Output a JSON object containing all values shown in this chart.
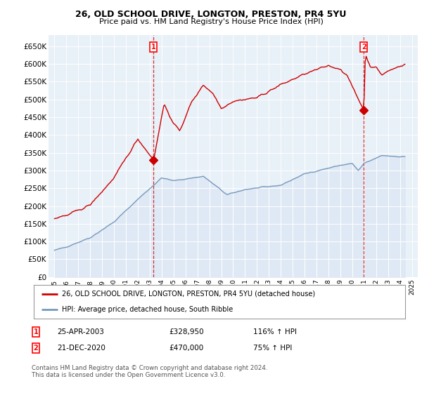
{
  "title1": "26, OLD SCHOOL DRIVE, LONGTON, PRESTON, PR4 5YU",
  "title2": "Price paid vs. HM Land Registry's House Price Index (HPI)",
  "ylabel_ticks": [
    "£0",
    "£50K",
    "£100K",
    "£150K",
    "£200K",
    "£250K",
    "£300K",
    "£350K",
    "£400K",
    "£450K",
    "£500K",
    "£550K",
    "£600K",
    "£650K"
  ],
  "ytick_values": [
    0,
    50000,
    100000,
    150000,
    200000,
    250000,
    300000,
    350000,
    400000,
    450000,
    500000,
    550000,
    600000,
    650000
  ],
  "ylim": [
    0,
    680000
  ],
  "xlim_start": 1994.5,
  "xlim_end": 2025.5,
  "xtick_years": [
    1995,
    1996,
    1997,
    1998,
    1999,
    2000,
    2001,
    2002,
    2003,
    2004,
    2005,
    2006,
    2007,
    2008,
    2009,
    2010,
    2011,
    2012,
    2013,
    2014,
    2015,
    2016,
    2017,
    2018,
    2019,
    2020,
    2021,
    2022,
    2023,
    2024,
    2025
  ],
  "hpi_color": "#7799bb",
  "hpi_fill_color": "#dde8f5",
  "price_color": "#cc0000",
  "marker1_x": 2003.32,
  "marker1_y": 328950,
  "marker2_x": 2020.97,
  "marker2_y": 470000,
  "legend_label1": "26, OLD SCHOOL DRIVE, LONGTON, PRESTON, PR4 5YU (detached house)",
  "legend_label2": "HPI: Average price, detached house, South Ribble",
  "annot1_num": "1",
  "annot1_date": "25-APR-2003",
  "annot1_price": "£328,950",
  "annot1_hpi": "116% ↑ HPI",
  "annot2_num": "2",
  "annot2_date": "21-DEC-2020",
  "annot2_price": "£470,000",
  "annot2_hpi": "75% ↑ HPI",
  "footnote": "Contains HM Land Registry data © Crown copyright and database right 2024.\nThis data is licensed under the Open Government Licence v3.0.",
  "bg_color": "#ffffff",
  "plot_bg_color": "#e8f0f8",
  "grid_color": "#ffffff"
}
